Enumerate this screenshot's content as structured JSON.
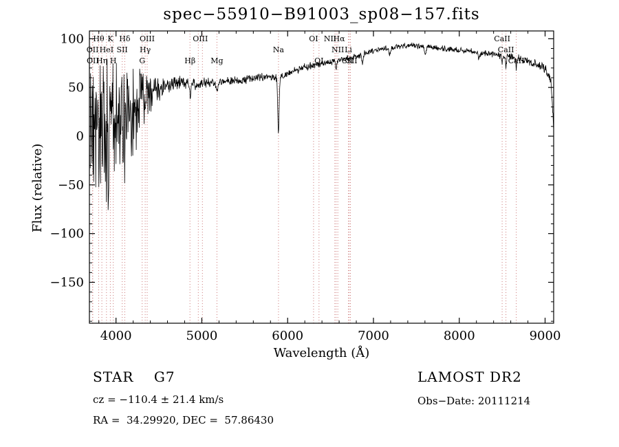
{
  "chart_data": {
    "type": "line",
    "title": "spec−55910−B91003_sp08−157.fits",
    "xlabel": "Wavelength (Å)",
    "ylabel": "Flux (relative)",
    "xlim": [
      3690,
      9100
    ],
    "ylim": [
      -192,
      108
    ],
    "x_major_ticks": [
      4000,
      5000,
      6000,
      7000,
      8000,
      9000
    ],
    "x_minor_step": 200,
    "y_major_ticks": [
      100,
      50,
      0,
      -50,
      -100,
      -150
    ],
    "y_minor_step": 10,
    "grid": false,
    "spectrum_color": "#000000",
    "axis_color": "#000000",
    "marker_line_color": "#cc7777",
    "spectral_lines": [
      {
        "wavelength": 3727,
        "label": "OII",
        "row": 2
      },
      {
        "wavelength": 3729,
        "label": "OII",
        "row": 3
      },
      {
        "wavelength": 3798,
        "label": "Hθ",
        "row": 1
      },
      {
        "wavelength": 3835,
        "label": "Hη",
        "row": 3
      },
      {
        "wavelength": 3889,
        "label": "HeI",
        "row": 2
      },
      {
        "wavelength": 3934,
        "label": "K",
        "row": 1
      },
      {
        "wavelength": 3968,
        "label": "H",
        "row": 3
      },
      {
        "wavelength": 4072,
        "label": "SII",
        "row": 2
      },
      {
        "wavelength": 4102,
        "label": "Hδ",
        "row": 1
      },
      {
        "wavelength": 4305,
        "label": "G",
        "row": 3
      },
      {
        "wavelength": 4340,
        "label": "Hγ",
        "row": 2
      },
      {
        "wavelength": 4363,
        "label": "OIII",
        "row": 1
      },
      {
        "wavelength": 4862,
        "label": "Hβ",
        "row": 3
      },
      {
        "wavelength": 4959,
        "label": "",
        "row": 1
      },
      {
        "wavelength": 5007,
        "label": "OIII",
        "row": 1,
        "label_at": 4983
      },
      {
        "wavelength": 5176,
        "label": "Mg",
        "row": 3
      },
      {
        "wavelength": 5893,
        "label": "Na",
        "row": 2
      },
      {
        "wavelength": 6302,
        "label": "OI",
        "row": 1
      },
      {
        "wavelength": 6365,
        "label": "OI",
        "row": 3
      },
      {
        "wavelength": 6550,
        "label": "NII",
        "row": 1,
        "label_at": 6495
      },
      {
        "wavelength": 6565,
        "label": "Hα",
        "row": 1,
        "label_at": 6600
      },
      {
        "wavelength": 6585,
        "label": "NII",
        "row": 2
      },
      {
        "wavelength": 6708,
        "label": "Li",
        "row": 2
      },
      {
        "wavelength": 6718,
        "label": "SII",
        "row": 3,
        "label_at": 6698
      },
      {
        "wavelength": 6732,
        "label": "SII",
        "row": 3,
        "label_at": 6748
      },
      {
        "wavelength": 8500,
        "label": "CaII",
        "row": 1
      },
      {
        "wavelength": 8544,
        "label": "CaII",
        "row": 2
      },
      {
        "wavelength": 8664,
        "label": "CaII",
        "row": 3
      }
    ],
    "continuum": [
      [
        3700,
        10
      ],
      [
        3850,
        15
      ],
      [
        3950,
        20
      ],
      [
        4050,
        25
      ],
      [
        4150,
        30
      ],
      [
        4250,
        36
      ],
      [
        4350,
        42
      ],
      [
        4450,
        47
      ],
      [
        4550,
        50
      ],
      [
        4650,
        53
      ],
      [
        4750,
        55
      ],
      [
        4850,
        54
      ],
      [
        4950,
        54
      ],
      [
        5100,
        55
      ],
      [
        5250,
        56
      ],
      [
        5400,
        57
      ],
      [
        5550,
        59
      ],
      [
        5700,
        61
      ],
      [
        5850,
        61
      ],
      [
        5950,
        62
      ],
      [
        6050,
        66
      ],
      [
        6200,
        71
      ],
      [
        6350,
        74
      ],
      [
        6500,
        76
      ],
      [
        6650,
        79
      ],
      [
        6800,
        82
      ],
      [
        7000,
        88
      ],
      [
        7200,
        91
      ],
      [
        7450,
        93
      ],
      [
        7700,
        91
      ],
      [
        7900,
        89
      ],
      [
        8100,
        87
      ],
      [
        8300,
        85
      ],
      [
        8500,
        83
      ],
      [
        8700,
        80
      ],
      [
        8900,
        74
      ],
      [
        9000,
        69
      ],
      [
        9040,
        64
      ],
      [
        9070,
        55
      ],
      [
        9090,
        25
      ],
      [
        9100,
        5
      ]
    ],
    "noise_amplitude": [
      [
        3700,
        85
      ],
      [
        3850,
        75
      ],
      [
        4000,
        65
      ],
      [
        4150,
        55
      ],
      [
        4300,
        40
      ],
      [
        4420,
        25
      ],
      [
        4500,
        13
      ],
      [
        4650,
        9
      ],
      [
        4900,
        7
      ],
      [
        5200,
        6
      ],
      [
        5600,
        5
      ],
      [
        6000,
        4.5
      ],
      [
        6500,
        4
      ],
      [
        7000,
        3.5
      ],
      [
        7600,
        3.5
      ],
      [
        8200,
        4
      ],
      [
        8800,
        4.5
      ],
      [
        9100,
        6
      ]
    ],
    "blue_spikes": {
      "cutoff": 4480,
      "probability": 0.2,
      "max_extra": 125
    },
    "absorption_features": [
      {
        "center": 4862,
        "depth": 13,
        "width": 10
      },
      {
        "center": 5176,
        "depth": 10,
        "width": 14
      },
      {
        "center": 5893,
        "depth": 57,
        "width": 12
      },
      {
        "center": 6563,
        "depth": 9,
        "width": 8
      },
      {
        "center": 6870,
        "depth": 10,
        "width": 10
      },
      {
        "center": 7190,
        "depth": 6,
        "width": 12
      },
      {
        "center": 7605,
        "depth": 9,
        "width": 12
      },
      {
        "center": 8230,
        "depth": 6,
        "width": 12
      },
      {
        "center": 8500,
        "depth": 9,
        "width": 8
      },
      {
        "center": 8544,
        "depth": 11,
        "width": 8
      },
      {
        "center": 8664,
        "depth": 11,
        "width": 8
      }
    ],
    "sample_step": 4,
    "seed": 20111214
  },
  "footer": {
    "class_label": "STAR    G7",
    "survey": "LAMOST DR2",
    "cz": "cz = −110.4 ± 21.4 km/s",
    "obs_date": "Obs−Date: 20111214",
    "coords": "RA =  34.29920, DEC =  57.86430"
  }
}
